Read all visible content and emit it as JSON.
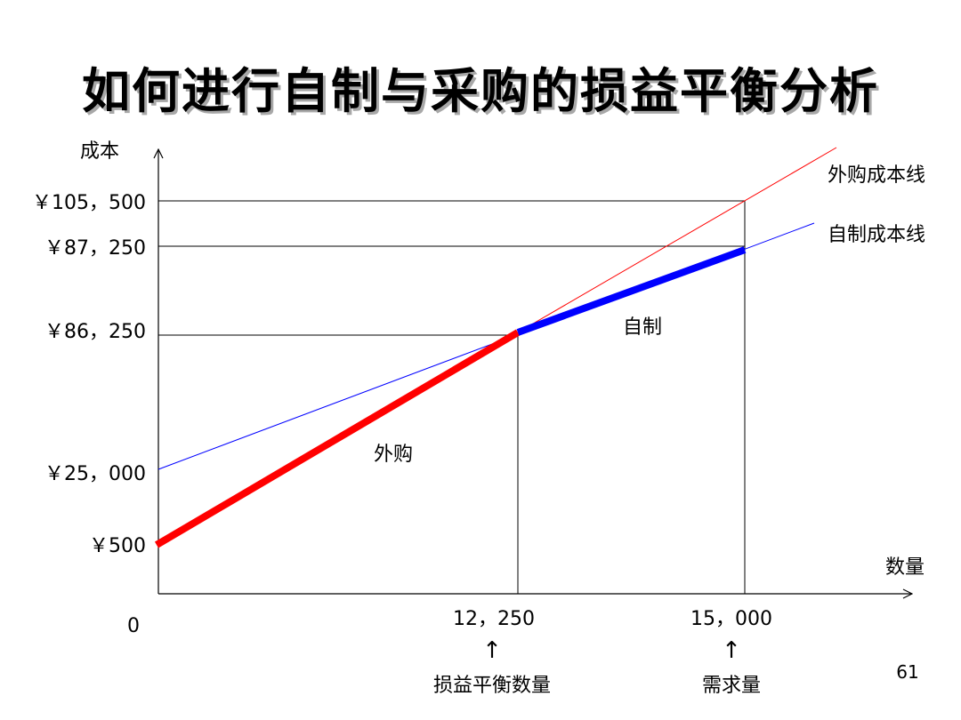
{
  "title": "如何进行自制与采购的损益平衡分析",
  "page_number": "61",
  "axes": {
    "y_label": "成本",
    "x_label": "数量",
    "origin_label": "0"
  },
  "y_ticks": [
    "￥105，500",
    "￥87，250",
    "￥86，250",
    "￥25，000",
    "￥500"
  ],
  "x_ticks": [
    "12，250",
    "15，000"
  ],
  "pointers": {
    "arrow_glyph": "↑",
    "breakeven_label": "损益平衡数量",
    "demand_label": "需求量"
  },
  "lines": {
    "outsource_label": "外购成本线",
    "inhouse_label": "自制成本线"
  },
  "regions": {
    "outsource_label": "外购",
    "inhouse_label": "自制"
  },
  "colors": {
    "outsource_line": "#ff0000",
    "inhouse_line": "#0000ff",
    "axis": "#000000",
    "title_shadow": "#a8a8a8"
  }
}
